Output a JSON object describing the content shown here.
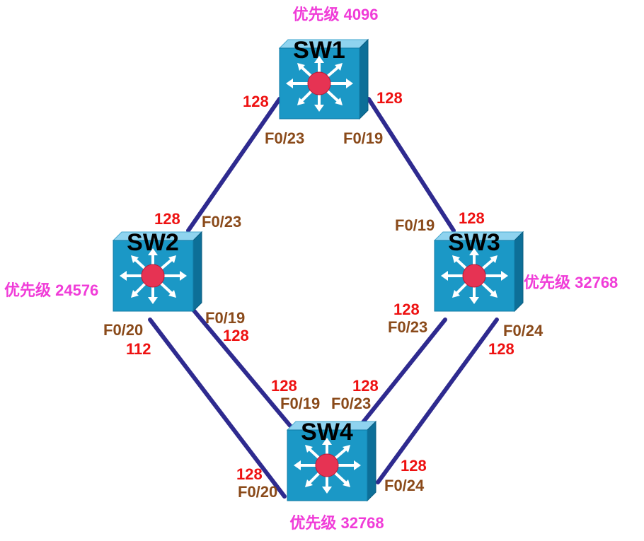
{
  "colors": {
    "link": "#2e2a8f",
    "cost": "#ee1111",
    "port": "#8a4a1a",
    "priority": "#f03cd8",
    "switch_body": "#1b98c6"
  },
  "switches": {
    "sw1": {
      "name": "SW1",
      "priority": "优先级 4096",
      "icon": "layer3-switch-icon"
    },
    "sw2": {
      "name": "SW2",
      "priority": "优先级 24576",
      "icon": "layer3-switch-icon"
    },
    "sw3": {
      "name": "SW3",
      "priority": "优先级 32768",
      "icon": "layer3-switch-icon"
    },
    "sw4": {
      "name": "SW4",
      "priority": "优先级 32768",
      "icon": "layer3-switch-icon"
    }
  },
  "links": {
    "sw1_sw2": {
      "a_port": "F0/23",
      "a_cost": "128",
      "b_port": "F0/23",
      "b_cost": "128"
    },
    "sw1_sw3": {
      "a_port": "F0/19",
      "a_cost": "128",
      "b_port": "F0/19",
      "b_cost": "128"
    },
    "sw2_sw4_f019": {
      "a_port": "F0/19",
      "a_cost": "128",
      "b_port": "F0/19",
      "b_cost": "128"
    },
    "sw2_sw4_f020": {
      "a_port": "F0/20",
      "a_cost": "112",
      "b_port": "F0/20",
      "b_cost": "128"
    },
    "sw3_sw4_f023": {
      "a_port": "F0/23",
      "a_cost": "128",
      "b_port": "F0/23",
      "b_cost": "128"
    },
    "sw3_sw4_f024": {
      "a_port": "F0/24",
      "a_cost": "128",
      "b_port": "F0/24",
      "b_cost": "128"
    }
  }
}
